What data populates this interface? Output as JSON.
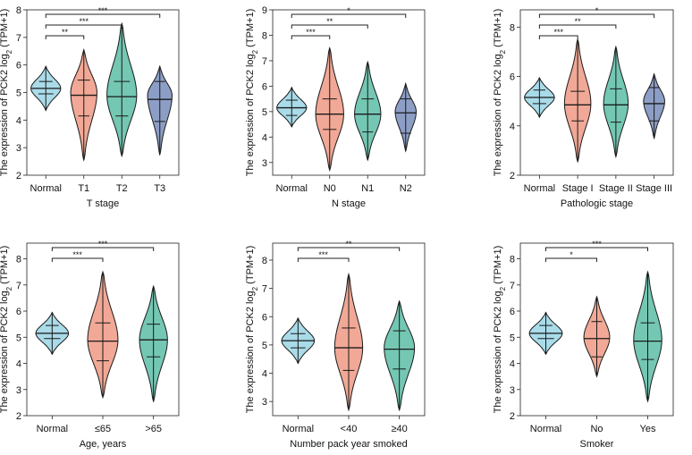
{
  "figure": {
    "ylabel_prefix": "The expression of PCK2 log",
    "ylabel_sub": "2",
    "ylabel_suffix": " (TPM+1)"
  },
  "colors": {
    "Normal": "#a9dbe9",
    "red": "#f1a896",
    "green": "#74c7b3",
    "blue": "#8d9ec6",
    "line": "#1a1a1a"
  },
  "chart_data": [
    {
      "type": "violin",
      "xlabel": "T stage",
      "ylim": [
        2,
        8
      ],
      "yticks": [
        2,
        3,
        4,
        5,
        6,
        7,
        8
      ],
      "categories": [
        "Normal",
        "T1",
        "T2",
        "T3"
      ],
      "series": [
        {
          "name": "Normal",
          "color": "Normal",
          "min": 4.35,
          "q1": 4.95,
          "median": 5.15,
          "q3": 5.4,
          "max": 5.95,
          "mode": 5.15,
          "width": 0.85
        },
        {
          "name": "T1",
          "color": "red",
          "min": 2.55,
          "q1": 4.15,
          "median": 4.9,
          "q3": 5.45,
          "max": 6.55,
          "mode": 5.0,
          "width": 0.75
        },
        {
          "name": "T2",
          "color": "green",
          "min": 2.7,
          "q1": 4.15,
          "median": 4.85,
          "q3": 5.4,
          "max": 7.5,
          "mode": 4.9,
          "width": 0.85
        },
        {
          "name": "T3",
          "color": "blue",
          "min": 2.75,
          "q1": 3.95,
          "median": 4.75,
          "q3": 5.4,
          "max": 5.95,
          "mode": 4.9,
          "width": 0.7
        }
      ],
      "significance": [
        {
          "from": 0,
          "to": 1,
          "label": "**"
        },
        {
          "from": 0,
          "to": 2,
          "label": "***"
        },
        {
          "from": 0,
          "to": 3,
          "label": "***"
        }
      ]
    },
    {
      "type": "violin",
      "xlabel": "N stage",
      "ylim": [
        2.5,
        9
      ],
      "yticks": [
        3,
        4,
        5,
        6,
        7,
        8,
        9
      ],
      "categories": [
        "Normal",
        "N0",
        "N1",
        "N2"
      ],
      "series": [
        {
          "name": "Normal",
          "color": "Normal",
          "min": 4.4,
          "q1": 4.85,
          "median": 5.15,
          "q3": 5.45,
          "max": 5.95,
          "mode": 5.15,
          "width": 0.85
        },
        {
          "name": "N0",
          "color": "red",
          "min": 2.7,
          "q1": 4.3,
          "median": 4.9,
          "q3": 5.5,
          "max": 7.5,
          "mode": 4.9,
          "width": 0.8
        },
        {
          "name": "N1",
          "color": "green",
          "min": 3.1,
          "q1": 4.2,
          "median": 4.9,
          "q3": 5.5,
          "max": 6.95,
          "mode": 4.9,
          "width": 0.75
        },
        {
          "name": "N2",
          "color": "blue",
          "min": 3.45,
          "q1": 4.15,
          "median": 4.95,
          "q3": 5.5,
          "max": 6.1,
          "mode": 5.0,
          "width": 0.6
        }
      ],
      "significance": [
        {
          "from": 0,
          "to": 1,
          "label": "***"
        },
        {
          "from": 0,
          "to": 2,
          "label": "**"
        },
        {
          "from": 0,
          "to": 3,
          "label": "*"
        }
      ]
    },
    {
      "type": "violin",
      "xlabel": "Pathologic stage",
      "ylim": [
        2,
        8.7
      ],
      "yticks": [
        2,
        4,
        6,
        8
      ],
      "categories": [
        "Normal",
        "Stage I",
        "Stage II",
        "Stage III"
      ],
      "series": [
        {
          "name": "Normal",
          "color": "Normal",
          "min": 4.35,
          "q1": 4.9,
          "median": 5.15,
          "q3": 5.45,
          "max": 5.95,
          "mode": 5.15,
          "width": 0.85
        },
        {
          "name": "Stage I",
          "color": "red",
          "min": 2.55,
          "q1": 4.2,
          "median": 4.85,
          "q3": 5.4,
          "max": 7.5,
          "mode": 4.9,
          "width": 0.75
        },
        {
          "name": "Stage II",
          "color": "green",
          "min": 2.75,
          "q1": 4.15,
          "median": 4.85,
          "q3": 5.5,
          "max": 7.2,
          "mode": 4.9,
          "width": 0.7
        },
        {
          "name": "Stage III",
          "color": "blue",
          "min": 3.5,
          "q1": 4.2,
          "median": 4.9,
          "q3": 5.55,
          "max": 6.1,
          "mode": 5.0,
          "width": 0.6
        }
      ],
      "significance": [
        {
          "from": 0,
          "to": 1,
          "label": "***"
        },
        {
          "from": 0,
          "to": 2,
          "label": "**"
        },
        {
          "from": 0,
          "to": 3,
          "label": "*"
        }
      ]
    },
    {
      "type": "violin",
      "xlabel": "Age, years",
      "ylim": [
        2,
        8.6
      ],
      "yticks": [
        2,
        3,
        4,
        5,
        6,
        7,
        8
      ],
      "categories": [
        "Normal",
        "≤65",
        ">65"
      ],
      "series": [
        {
          "name": "Normal",
          "color": "Normal",
          "min": 4.35,
          "q1": 4.95,
          "median": 5.15,
          "q3": 5.45,
          "max": 5.95,
          "mode": 5.15,
          "width": 0.7
        },
        {
          "name": "≤65",
          "color": "red",
          "min": 2.7,
          "q1": 4.1,
          "median": 4.85,
          "q3": 5.55,
          "max": 7.5,
          "mode": 4.9,
          "width": 0.65
        },
        {
          "name": ">65",
          "color": "green",
          "min": 2.55,
          "q1": 4.25,
          "median": 4.9,
          "q3": 5.5,
          "max": 6.95,
          "mode": 4.9,
          "width": 0.6
        }
      ],
      "significance": [
        {
          "from": 0,
          "to": 1,
          "label": "***"
        },
        {
          "from": 0,
          "to": 2,
          "label": "***"
        }
      ]
    },
    {
      "type": "violin",
      "xlabel": "Number pack year smoked",
      "ylim": [
        2.5,
        8.6
      ],
      "yticks": [
        3,
        4,
        5,
        6,
        7,
        8
      ],
      "categories": [
        "Normal",
        "<40",
        "≥40"
      ],
      "series": [
        {
          "name": "Normal",
          "color": "Normal",
          "min": 4.35,
          "q1": 4.9,
          "median": 5.15,
          "q3": 5.4,
          "max": 5.95,
          "mode": 5.15,
          "width": 0.7
        },
        {
          "name": "<40",
          "color": "red",
          "min": 2.7,
          "q1": 4.1,
          "median": 4.9,
          "q3": 5.6,
          "max": 7.5,
          "mode": 4.9,
          "width": 0.6
        },
        {
          "name": "≥40",
          "color": "green",
          "min": 2.7,
          "q1": 4.15,
          "median": 4.85,
          "q3": 5.5,
          "max": 6.55,
          "mode": 4.9,
          "width": 0.65
        }
      ],
      "significance": [
        {
          "from": 0,
          "to": 1,
          "label": "***"
        },
        {
          "from": 0,
          "to": 2,
          "label": "**"
        }
      ]
    },
    {
      "type": "violin",
      "xlabel": "Smoker",
      "ylim": [
        2,
        8.6
      ],
      "yticks": [
        2,
        3,
        4,
        5,
        6,
        7,
        8
      ],
      "categories": [
        "Normal",
        "No",
        "Yes"
      ],
      "series": [
        {
          "name": "Normal",
          "color": "Normal",
          "min": 4.35,
          "q1": 4.95,
          "median": 5.15,
          "q3": 5.45,
          "max": 5.95,
          "mode": 5.15,
          "width": 0.7
        },
        {
          "name": "No",
          "color": "red",
          "min": 3.5,
          "q1": 4.25,
          "median": 4.95,
          "q3": 5.6,
          "max": 6.55,
          "mode": 5.0,
          "width": 0.55
        },
        {
          "name": "Yes",
          "color": "green",
          "min": 2.55,
          "q1": 4.15,
          "median": 4.85,
          "q3": 5.55,
          "max": 7.5,
          "mode": 4.9,
          "width": 0.6
        }
      ],
      "significance": [
        {
          "from": 0,
          "to": 1,
          "label": "*"
        },
        {
          "from": 0,
          "to": 2,
          "label": "***"
        }
      ]
    }
  ]
}
